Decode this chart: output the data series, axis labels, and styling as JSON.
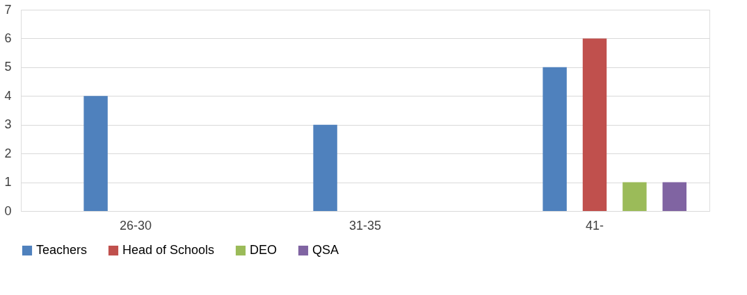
{
  "chart_data": {
    "type": "bar",
    "categories": [
      "26-30",
      "31-35",
      "41-"
    ],
    "series": [
      {
        "name": "Teachers",
        "color": "#4f81bd",
        "values": [
          4,
          3,
          5
        ]
      },
      {
        "name": "Head of Schools",
        "color": "#c0504d",
        "values": [
          0,
          0,
          6
        ]
      },
      {
        "name": "DEO",
        "color": "#9bbb59",
        "values": [
          0,
          0,
          1
        ]
      },
      {
        "name": "QSA",
        "color": "#8064a2",
        "values": [
          0,
          0,
          1
        ]
      }
    ],
    "ylim": [
      0,
      7
    ],
    "yticks": [
      0,
      1,
      2,
      3,
      4,
      5,
      6,
      7
    ],
    "grid": "y",
    "legend": "bottom"
  }
}
